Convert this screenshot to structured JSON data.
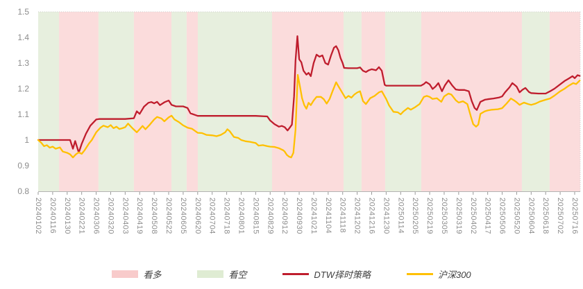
{
  "chart_data": {
    "type": "line",
    "title": "",
    "xlabel": "",
    "ylabel": "",
    "ylim": [
      0.8,
      1.5
    ],
    "grid": false,
    "legend_position": "bottom",
    "y_ticks": [
      "1.5",
      "1.4",
      "1.3",
      "1.2",
      "1.1",
      "1",
      "0.9",
      "0.8"
    ],
    "categories": [
      "20240102",
      "20240116",
      "20240130",
      "20240221",
      "20240306",
      "20240320",
      "20240403",
      "20240419",
      "20240508",
      "20240522",
      "20240605",
      "20240620",
      "20240704",
      "20240718",
      "20240801",
      "20240815",
      "20240829",
      "20240912",
      "20240930",
      "20241021",
      "20241104",
      "20241118",
      "20241202",
      "20241216",
      "20241230",
      "20250114",
      "20250205",
      "20250219",
      "20250305",
      "20250319",
      "20250402",
      "20250417",
      "20250506",
      "20250520",
      "20250604",
      "20250618",
      "20250702",
      "20250716"
    ],
    "band_colors": {
      "bull": "#fbdcdc",
      "bear": "#e7efde"
    },
    "bands": [
      {
        "from": 0.0,
        "to": 1.44,
        "type": "bear"
      },
      {
        "from": 1.44,
        "to": 4.16,
        "type": "bull"
      },
      {
        "from": 4.16,
        "to": 6.6,
        "type": "bear"
      },
      {
        "from": 6.6,
        "to": 9.19,
        "type": "bull"
      },
      {
        "from": 9.19,
        "to": 10.24,
        "type": "bear"
      },
      {
        "from": 10.24,
        "to": 11.01,
        "type": "bull"
      },
      {
        "from": 11.01,
        "to": 16.13,
        "type": "bear"
      },
      {
        "from": 16.13,
        "to": 21.06,
        "type": "bull"
      },
      {
        "from": 21.06,
        "to": 22.3,
        "type": "bear"
      },
      {
        "from": 22.3,
        "to": 23.93,
        "type": "bull"
      },
      {
        "from": 23.93,
        "to": 26.42,
        "type": "bear"
      },
      {
        "from": 26.42,
        "to": 33.36,
        "type": "bull"
      },
      {
        "from": 33.36,
        "to": 35.27,
        "type": "bear"
      },
      {
        "from": 35.27,
        "to": 37.38,
        "type": "bull"
      }
    ],
    "series": [
      {
        "name": "DTW择时策略",
        "color": "#bf1d2d",
        "points": [
          [
            0,
            1.0
          ],
          [
            1,
            1.0
          ],
          [
            2,
            1.0
          ],
          [
            2.2,
            1.0
          ],
          [
            2.4,
            0.966
          ],
          [
            2.55,
            0.996
          ],
          [
            2.8,
            0.951
          ],
          [
            3.0,
            0.985
          ],
          [
            3.3,
            1.025
          ],
          [
            3.6,
            1.056
          ],
          [
            4,
            1.08
          ],
          [
            4.2,
            1.082
          ],
          [
            5,
            1.082
          ],
          [
            6,
            1.082
          ],
          [
            6.6,
            1.085
          ],
          [
            6.8,
            1.112
          ],
          [
            7,
            1.102
          ],
          [
            7.3,
            1.13
          ],
          [
            7.6,
            1.145
          ],
          [
            7.8,
            1.148
          ],
          [
            8,
            1.143
          ],
          [
            8.2,
            1.149
          ],
          [
            8.4,
            1.136
          ],
          [
            8.7,
            1.147
          ],
          [
            9,
            1.154
          ],
          [
            9.2,
            1.137
          ],
          [
            9.5,
            1.131
          ],
          [
            10,
            1.131
          ],
          [
            10.3,
            1.125
          ],
          [
            10.5,
            1.104
          ],
          [
            10.8,
            1.098
          ],
          [
            11,
            1.094
          ],
          [
            12,
            1.094
          ],
          [
            13,
            1.094
          ],
          [
            14,
            1.094
          ],
          [
            15,
            1.094
          ],
          [
            15.8,
            1.092
          ],
          [
            16,
            1.076
          ],
          [
            16.3,
            1.062
          ],
          [
            16.6,
            1.052
          ],
          [
            16.8,
            1.055
          ],
          [
            17,
            1.05
          ],
          [
            17.2,
            1.037
          ],
          [
            17.35,
            1.048
          ],
          [
            17.5,
            1.06
          ],
          [
            17.65,
            1.17
          ],
          [
            17.75,
            1.31
          ],
          [
            17.88,
            1.405
          ],
          [
            18,
            1.315
          ],
          [
            18.15,
            1.303
          ],
          [
            18.3,
            1.27
          ],
          [
            18.5,
            1.255
          ],
          [
            18.65,
            1.262
          ],
          [
            18.8,
            1.249
          ],
          [
            19,
            1.3
          ],
          [
            19.2,
            1.333
          ],
          [
            19.4,
            1.325
          ],
          [
            19.6,
            1.33
          ],
          [
            19.8,
            1.3
          ],
          [
            20,
            1.294
          ],
          [
            20.2,
            1.33
          ],
          [
            20.4,
            1.36
          ],
          [
            20.55,
            1.366
          ],
          [
            20.7,
            1.35
          ],
          [
            20.85,
            1.32
          ],
          [
            21,
            1.3
          ],
          [
            21.1,
            1.281
          ],
          [
            21.4,
            1.28
          ],
          [
            21.8,
            1.28
          ],
          [
            22,
            1.28
          ],
          [
            22.2,
            1.283
          ],
          [
            22.4,
            1.27
          ],
          [
            22.6,
            1.265
          ],
          [
            22.8,
            1.272
          ],
          [
            23,
            1.276
          ],
          [
            23.3,
            1.272
          ],
          [
            23.5,
            1.284
          ],
          [
            23.7,
            1.27
          ],
          [
            23.9,
            1.215
          ],
          [
            24,
            1.212
          ],
          [
            25,
            1.212
          ],
          [
            26,
            1.212
          ],
          [
            26.4,
            1.212
          ],
          [
            26.6,
            1.218
          ],
          [
            26.75,
            1.226
          ],
          [
            27,
            1.217
          ],
          [
            27.2,
            1.199
          ],
          [
            27.4,
            1.208
          ],
          [
            27.6,
            1.222
          ],
          [
            27.85,
            1.19
          ],
          [
            28.05,
            1.213
          ],
          [
            28.3,
            1.233
          ],
          [
            28.55,
            1.213
          ],
          [
            28.8,
            1.197
          ],
          [
            29,
            1.195
          ],
          [
            29.4,
            1.195
          ],
          [
            29.7,
            1.19
          ],
          [
            29.9,
            1.152
          ],
          [
            30.1,
            1.125
          ],
          [
            30.25,
            1.117
          ],
          [
            30.5,
            1.149
          ],
          [
            30.8,
            1.157
          ],
          [
            31,
            1.159
          ],
          [
            31.4,
            1.162
          ],
          [
            31.8,
            1.166
          ],
          [
            32,
            1.17
          ],
          [
            32.2,
            1.186
          ],
          [
            32.5,
            1.205
          ],
          [
            32.7,
            1.222
          ],
          [
            32.85,
            1.215
          ],
          [
            33,
            1.208
          ],
          [
            33.2,
            1.186
          ],
          [
            33.4,
            1.196
          ],
          [
            33.6,
            1.203
          ],
          [
            33.85,
            1.187
          ],
          [
            34,
            1.183
          ],
          [
            34.5,
            1.181
          ],
          [
            35,
            1.181
          ],
          [
            35.3,
            1.19
          ],
          [
            35.6,
            1.2
          ],
          [
            36,
            1.217
          ],
          [
            36.3,
            1.23
          ],
          [
            36.6,
            1.24
          ],
          [
            36.85,
            1.249
          ],
          [
            37,
            1.241
          ],
          [
            37.2,
            1.253
          ],
          [
            37.35,
            1.25
          ]
        ]
      },
      {
        "name": "沪深300",
        "color": "#ffc000",
        "points": [
          [
            0,
            1.0
          ],
          [
            0.2,
            0.99
          ],
          [
            0.4,
            0.976
          ],
          [
            0.6,
            0.98
          ],
          [
            0.8,
            0.97
          ],
          [
            1,
            0.974
          ],
          [
            1.2,
            0.966
          ],
          [
            1.5,
            0.971
          ],
          [
            1.7,
            0.955
          ],
          [
            2,
            0.95
          ],
          [
            2.2,
            0.944
          ],
          [
            2.4,
            0.932
          ],
          [
            2.6,
            0.944
          ],
          [
            2.8,
            0.952
          ],
          [
            3,
            0.946
          ],
          [
            3.2,
            0.96
          ],
          [
            3.5,
            0.986
          ],
          [
            3.7,
            1.0
          ],
          [
            4,
            1.03
          ],
          [
            4.3,
            1.048
          ],
          [
            4.5,
            1.056
          ],
          [
            4.8,
            1.05
          ],
          [
            5,
            1.058
          ],
          [
            5.2,
            1.046
          ],
          [
            5.4,
            1.052
          ],
          [
            5.6,
            1.043
          ],
          [
            5.8,
            1.046
          ],
          [
            6,
            1.05
          ],
          [
            6.2,
            1.064
          ],
          [
            6.5,
            1.046
          ],
          [
            6.8,
            1.03
          ],
          [
            7,
            1.042
          ],
          [
            7.2,
            1.055
          ],
          [
            7.4,
            1.042
          ],
          [
            7.7,
            1.06
          ],
          [
            8,
            1.08
          ],
          [
            8.2,
            1.09
          ],
          [
            8.5,
            1.084
          ],
          [
            8.7,
            1.073
          ],
          [
            9,
            1.088
          ],
          [
            9.2,
            1.095
          ],
          [
            9.4,
            1.08
          ],
          [
            9.7,
            1.07
          ],
          [
            10,
            1.057
          ],
          [
            10.3,
            1.048
          ],
          [
            10.6,
            1.044
          ],
          [
            11,
            1.028
          ],
          [
            11.3,
            1.027
          ],
          [
            11.6,
            1.02
          ],
          [
            12,
            1.018
          ],
          [
            12.3,
            1.015
          ],
          [
            12.6,
            1.02
          ],
          [
            12.9,
            1.03
          ],
          [
            13.05,
            1.042
          ],
          [
            13.2,
            1.035
          ],
          [
            13.5,
            1.012
          ],
          [
            13.8,
            1.008
          ],
          [
            14,
            1.0
          ],
          [
            14.3,
            0.995
          ],
          [
            14.6,
            0.993
          ],
          [
            15,
            0.988
          ],
          [
            15.2,
            0.978
          ],
          [
            15.5,
            0.98
          ],
          [
            15.8,
            0.976
          ],
          [
            16,
            0.974
          ],
          [
            16.3,
            0.973
          ],
          [
            16.6,
            0.968
          ],
          [
            16.9,
            0.96
          ],
          [
            17,
            0.955
          ],
          [
            17.15,
            0.942
          ],
          [
            17.3,
            0.935
          ],
          [
            17.45,
            0.932
          ],
          [
            17.6,
            0.95
          ],
          [
            17.75,
            1.04
          ],
          [
            17.9,
            1.254
          ],
          [
            18.05,
            1.21
          ],
          [
            18.2,
            1.163
          ],
          [
            18.35,
            1.136
          ],
          [
            18.5,
            1.122
          ],
          [
            18.65,
            1.145
          ],
          [
            18.8,
            1.136
          ],
          [
            19,
            1.154
          ],
          [
            19.2,
            1.168
          ],
          [
            19.5,
            1.168
          ],
          [
            19.7,
            1.159
          ],
          [
            19.9,
            1.142
          ],
          [
            20.1,
            1.16
          ],
          [
            20.3,
            1.19
          ],
          [
            20.55,
            1.225
          ],
          [
            20.7,
            1.21
          ],
          [
            21,
            1.182
          ],
          [
            21.2,
            1.163
          ],
          [
            21.4,
            1.172
          ],
          [
            21.6,
            1.165
          ],
          [
            21.8,
            1.177
          ],
          [
            22,
            1.185
          ],
          [
            22.2,
            1.19
          ],
          [
            22.4,
            1.152
          ],
          [
            22.6,
            1.14
          ],
          [
            22.9,
            1.163
          ],
          [
            23.2,
            1.172
          ],
          [
            23.5,
            1.186
          ],
          [
            23.7,
            1.19
          ],
          [
            24,
            1.16
          ],
          [
            24.2,
            1.135
          ],
          [
            24.5,
            1.11
          ],
          [
            24.8,
            1.108
          ],
          [
            25,
            1.1
          ],
          [
            25.2,
            1.112
          ],
          [
            25.5,
            1.125
          ],
          [
            25.7,
            1.118
          ],
          [
            26,
            1.128
          ],
          [
            26.3,
            1.14
          ],
          [
            26.6,
            1.168
          ],
          [
            26.8,
            1.172
          ],
          [
            27,
            1.168
          ],
          [
            27.2,
            1.16
          ],
          [
            27.5,
            1.163
          ],
          [
            27.8,
            1.149
          ],
          [
            28,
            1.17
          ],
          [
            28.3,
            1.181
          ],
          [
            28.5,
            1.177
          ],
          [
            28.8,
            1.155
          ],
          [
            29,
            1.146
          ],
          [
            29.3,
            1.151
          ],
          [
            29.6,
            1.14
          ],
          [
            29.85,
            1.09
          ],
          [
            30,
            1.062
          ],
          [
            30.2,
            1.052
          ],
          [
            30.35,
            1.06
          ],
          [
            30.5,
            1.102
          ],
          [
            30.8,
            1.112
          ],
          [
            31,
            1.115
          ],
          [
            31.3,
            1.118
          ],
          [
            31.7,
            1.12
          ],
          [
            32,
            1.124
          ],
          [
            32.3,
            1.142
          ],
          [
            32.6,
            1.162
          ],
          [
            32.8,
            1.155
          ],
          [
            33,
            1.147
          ],
          [
            33.2,
            1.137
          ],
          [
            33.5,
            1.146
          ],
          [
            33.8,
            1.14
          ],
          [
            34,
            1.137
          ],
          [
            34.3,
            1.142
          ],
          [
            34.6,
            1.15
          ],
          [
            35,
            1.157
          ],
          [
            35.3,
            1.162
          ],
          [
            35.6,
            1.173
          ],
          [
            36,
            1.19
          ],
          [
            36.3,
            1.2
          ],
          [
            36.6,
            1.212
          ],
          [
            36.9,
            1.222
          ],
          [
            37.1,
            1.218
          ],
          [
            37.35,
            1.232
          ]
        ]
      }
    ],
    "legend": [
      {
        "label": "看多",
        "swatch": "bull-band",
        "color": "#f8cbcb"
      },
      {
        "label": "看空",
        "swatch": "bear-band",
        "color": "#dfecd3"
      },
      {
        "label": "DTW择时策略",
        "swatch": "red-line",
        "color": "#bf1d2d"
      },
      {
        "label": "沪深300",
        "swatch": "yellow-line",
        "color": "#ffc000"
      }
    ],
    "axis_text_color": "#8c8c8c"
  }
}
